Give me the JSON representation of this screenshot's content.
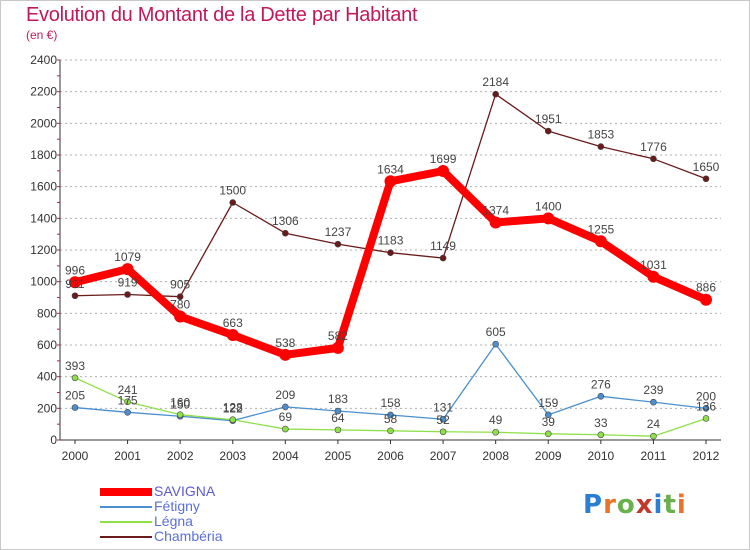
{
  "title": "Evolution du Montant de la Dette par Habitant",
  "subtitle": "(en €)",
  "logo_text": "Proxiti",
  "chart_data": {
    "type": "line",
    "x": [
      "2000",
      "2001",
      "2002",
      "2003",
      "2004",
      "2005",
      "2006",
      "2007",
      "2008",
      "2009",
      "2010",
      "2011",
      "2012"
    ],
    "ylim": [
      0,
      2400
    ],
    "yticks": [
      0,
      200,
      400,
      600,
      800,
      1000,
      1200,
      1400,
      1600,
      1800,
      2000,
      2200,
      2400
    ],
    "grid": "horizontal dashed",
    "legend_position": "bottom-left",
    "series": [
      {
        "name": "SAVIGNA",
        "color": "#ff0000",
        "values": [
          996,
          1079,
          780,
          663,
          538,
          582,
          1634,
          1699,
          1374,
          1400,
          1255,
          1031,
          886
        ]
      },
      {
        "name": "Fétigny",
        "color": "#4a8fcf",
        "values": [
          205,
          175,
          150,
          122,
          209,
          183,
          158,
          131,
          605,
          159,
          276,
          239,
          200
        ]
      },
      {
        "name": "Légna",
        "color": "#8ee04a",
        "values": [
          393,
          241,
          160,
          128,
          69,
          64,
          58,
          52,
          49,
          39,
          33,
          24,
          136
        ]
      },
      {
        "name": "Chambéria",
        "color": "#6b1a1a",
        "values": [
          911,
          919,
          905,
          1500,
          1306,
          1237,
          1183,
          1149,
          2184,
          1951,
          1853,
          1776,
          1650
        ]
      }
    ]
  }
}
